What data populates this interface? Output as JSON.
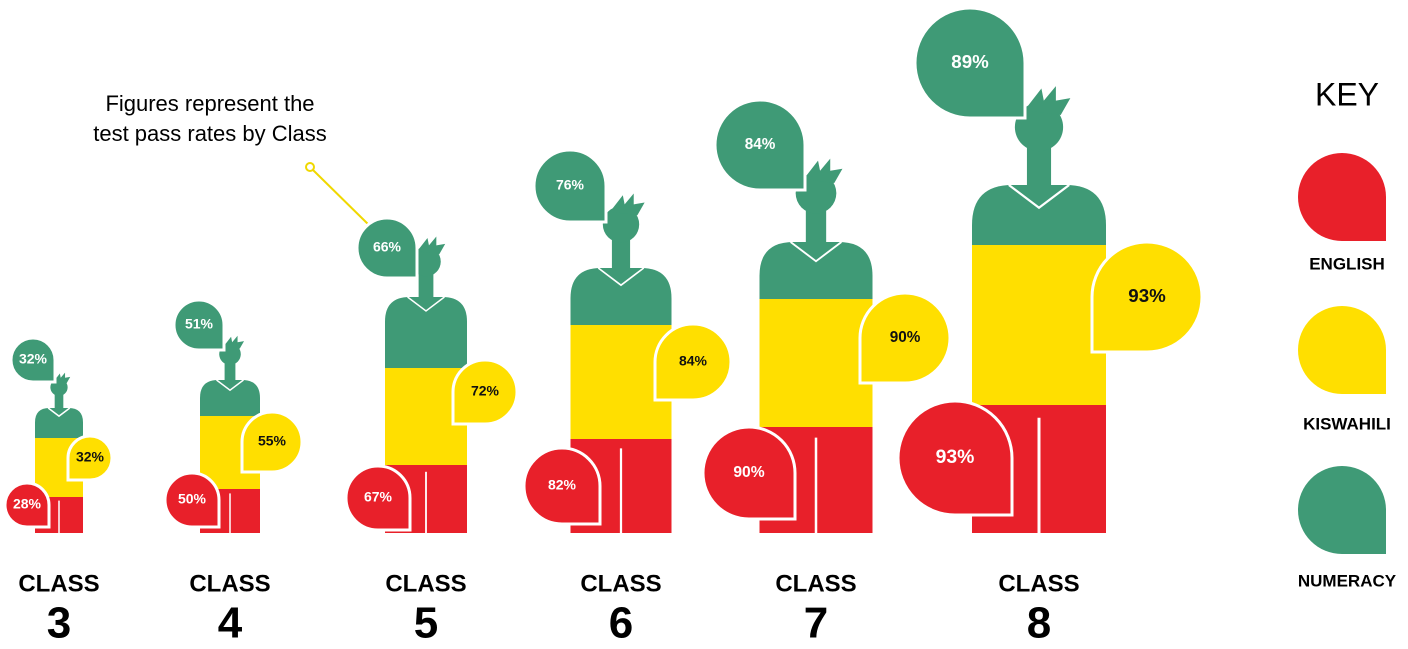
{
  "chart_data": {
    "type": "pictograph",
    "annotation": [
      "Figures represent the",
      "test pass rates by Class"
    ],
    "category_label": "CLASS",
    "categories": [
      "3",
      "4",
      "5",
      "6",
      "7",
      "8"
    ],
    "legend_title": "KEY",
    "series": [
      {
        "name": "ENGLISH",
        "color": "#e8202a",
        "values": [
          28,
          50,
          67,
          82,
          90,
          93
        ],
        "value_labels": [
          "28%",
          "50%",
          "67%",
          "82%",
          "90%",
          "93%"
        ]
      },
      {
        "name": "KISWAHILI",
        "color": "#ffdf00",
        "values": [
          32,
          55,
          72,
          84,
          90,
          93
        ],
        "value_labels": [
          "32%",
          "55%",
          "72%",
          "84%",
          "90%",
          "93%"
        ]
      },
      {
        "name": "NUMERACY",
        "color": "#3f9a76",
        "values": [
          32,
          51,
          66,
          76,
          84,
          89
        ],
        "value_labels": [
          "32%",
          "51%",
          "66%",
          "76%",
          "84%",
          "89%"
        ]
      }
    ]
  }
}
